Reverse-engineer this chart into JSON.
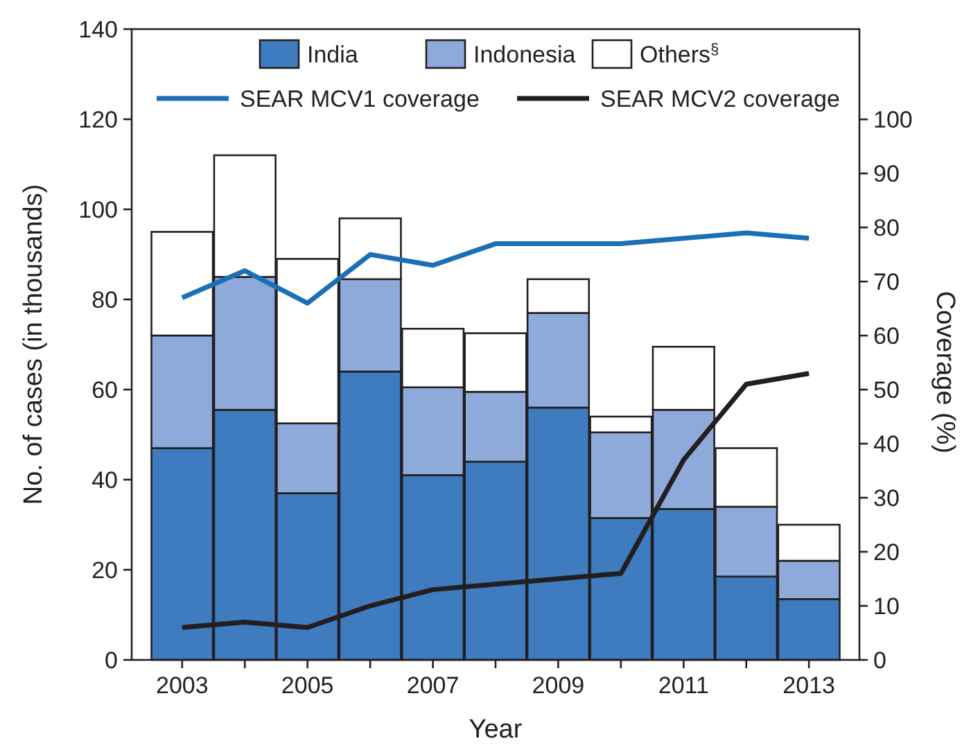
{
  "chart_data": {
    "type": "bar",
    "stacked": true,
    "xlabel": "Year",
    "ylabel": "No. of cases (in thousands)",
    "y2label": "Coverage (%)",
    "categories": [
      "2003",
      null,
      "2005",
      null,
      "2007",
      null,
      "2009",
      null,
      "2011",
      null,
      "2013"
    ],
    "ylim": [
      0,
      140
    ],
    "yticks": [
      0,
      20,
      40,
      60,
      80,
      100,
      120,
      140
    ],
    "y2lim": [
      0,
      116.7
    ],
    "y2ticks": [
      0,
      10,
      20,
      30,
      40,
      50,
      60,
      70,
      80,
      90,
      100
    ],
    "legend": "top",
    "grid": false,
    "series": [
      {
        "name": "India",
        "color": "#3f7bbf",
        "values": [
          47,
          55.5,
          37,
          64,
          41,
          44,
          56,
          31.5,
          33.5,
          18.5,
          13.5
        ]
      },
      {
        "name": "Indonesia",
        "color": "#8eaadb",
        "values": [
          25,
          29.5,
          15.5,
          20.5,
          19.5,
          15.5,
          21,
          19,
          22,
          15.5,
          8.5
        ]
      },
      {
        "name": "Others$^{§}$",
        "color": "#ffffff",
        "values": [
          23,
          27,
          36.5,
          13.5,
          13,
          13,
          7.5,
          3.5,
          14,
          13,
          8
        ]
      },
      {
        "name": "SEAR MCV1 coverage",
        "type": "line",
        "axis": "y2",
        "color": "#1a6fb5",
        "line_style": "solid",
        "values": [
          67,
          72,
          66,
          75,
          73,
          77,
          77,
          77,
          78,
          79,
          78
        ]
      },
      {
        "name": "SEAR MCV2 coverage",
        "type": "line",
        "axis": "y2",
        "color": "#231f20",
        "line_style": "solid",
        "values": [
          6,
          7,
          6,
          10,
          13,
          14,
          15,
          16,
          37,
          51,
          53
        ]
      }
    ]
  }
}
